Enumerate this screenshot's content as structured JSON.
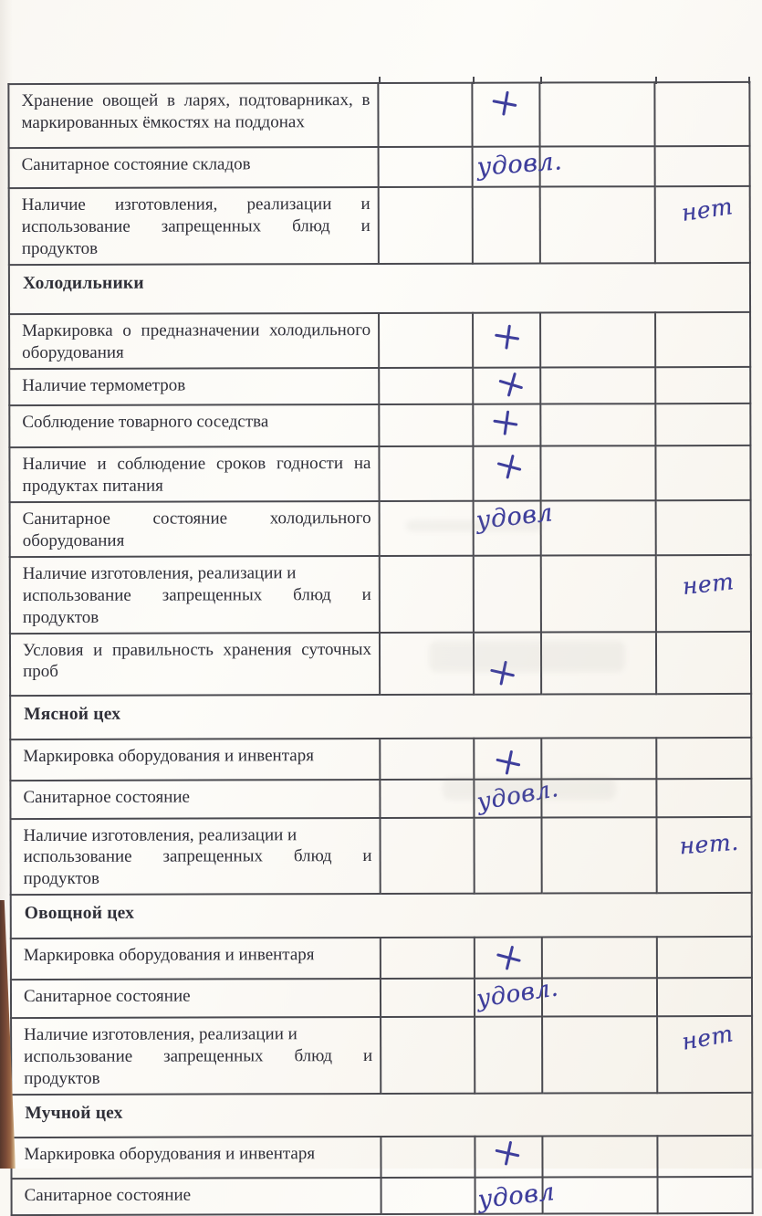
{
  "document_type_label": "Санитарный контрольный лист (скан страницы таблицы)",
  "colors": {
    "ink": "#3e3e9c",
    "grid": "#4a4a50",
    "text": "#2f2f38",
    "paper": "#fbf9f4",
    "desk_wood": "#8a5640"
  },
  "table": {
    "rows": [
      {
        "type": "item",
        "label": "Хранение овощей в ларях, подтоварниках, в маркированных ёмкостях на поддонах",
        "mark": {
          "col": 3,
          "kind": "plus",
          "text": "+",
          "pos": {
            "x": 20,
            "y": 6,
            "tilt": 4
          }
        }
      },
      {
        "type": "item",
        "label": "Санитарное состояние складов",
        "mark": {
          "col": 3,
          "kind": "script",
          "text": "удовл.",
          "pos": {
            "x": 4,
            "y": 5,
            "size": 27,
            "tilt": -4
          }
        }
      },
      {
        "type": "item",
        "label": "Наличие изготовления, реализации и использование запрещенных блюд и продуктов",
        "mark": {
          "col": 5,
          "kind": "script",
          "text": "нет",
          "pos": {
            "x": 28,
            "y": 12,
            "size": 25,
            "tilt": -8
          }
        }
      },
      {
        "type": "section",
        "label": "Холодильники"
      },
      {
        "type": "item",
        "label": "Маркировка о предназначении холодильного оборудования",
        "mark": {
          "col": 3,
          "kind": "plus",
          "text": "+",
          "pos": {
            "x": 22,
            "y": 10,
            "tilt": 2
          }
        }
      },
      {
        "type": "item",
        "label": "Наличие термометров",
        "mark": {
          "col": 3,
          "kind": "plus",
          "text": "+",
          "pos": {
            "x": 26,
            "y": 2,
            "tilt": 10
          }
        }
      },
      {
        "type": "item",
        "label": "Соблюдение товарного соседства",
        "mark": {
          "col": 3,
          "kind": "plus",
          "text": "+",
          "pos": {
            "x": 20,
            "y": 4,
            "tilt": 2
          }
        }
      },
      {
        "type": "item",
        "label": "Наличие и соблюдение сроков годности на продуктах питания",
        "mark": {
          "col": 3,
          "kind": "plus",
          "text": "+",
          "pos": {
            "x": 24,
            "y": 6,
            "tilt": 8
          }
        }
      },
      {
        "type": "item",
        "label": "Санитарное состояние холодильного оборудования",
        "mark": {
          "col": 3,
          "kind": "script",
          "text": "удовл",
          "pos": {
            "x": 2,
            "y": 3,
            "size": 27,
            "tilt": -6
          }
        }
      },
      {
        "type": "item",
        "label": "Наличие изготовления, реализации и\nиспользование запрещенных  блюд и продуктов",
        "mark": {
          "col": 5,
          "kind": "script",
          "text": "нет",
          "pos": {
            "x": 28,
            "y": 18,
            "size": 25,
            "tilt": -6
          }
        }
      },
      {
        "type": "item",
        "label": "Условия и правильность хранения суточных проб",
        "mark": {
          "col": 3,
          "kind": "plus",
          "text": "+",
          "pos": {
            "x": 16,
            "y": 28,
            "tilt": 6
          }
        }
      },
      {
        "type": "section",
        "label": "Мясной цех"
      },
      {
        "type": "item",
        "label": "Маркировка оборудования и инвентаря",
        "mark": {
          "col": 3,
          "kind": "plus",
          "text": "+",
          "pos": {
            "x": 22,
            "y": 10,
            "tilt": 6
          }
        }
      },
      {
        "type": "item",
        "label": "Санитарное состояние",
        "mark": {
          "col": 3,
          "kind": "script",
          "text": "удовл.",
          "pos": {
            "x": 2,
            "y": 4,
            "size": 26,
            "tilt": -10
          }
        }
      },
      {
        "type": "item",
        "label": "Наличие изготовления, реализации и\nиспользование запрещенных блюд и продуктов",
        "mark": {
          "col": 5,
          "kind": "script",
          "text": "нет.",
          "pos": {
            "x": 24,
            "y": 16,
            "size": 25,
            "tilt": -4
          }
        }
      },
      {
        "type": "section",
        "label": "Овощной цех"
      },
      {
        "type": "item",
        "label": "Маркировка оборудования и инвентаря",
        "mark": {
          "col": 3,
          "kind": "plus",
          "text": "+",
          "pos": {
            "x": 22,
            "y": 6,
            "tilt": 8
          }
        }
      },
      {
        "type": "item",
        "label": "Санитарное состояние",
        "mark": {
          "col": 3,
          "kind": "script",
          "text": "удовл.",
          "pos": {
            "x": 1,
            "y": 3,
            "size": 26,
            "tilt": -8
          }
        }
      },
      {
        "type": "item",
        "label": "Наличие изготовления, реализации и\nиспользование запрещенных  блюд и продуктов",
        "mark": {
          "col": 5,
          "kind": "script",
          "text": "нет",
          "pos": {
            "x": 26,
            "y": 10,
            "size": 25,
            "tilt": -10
          }
        }
      },
      {
        "type": "section",
        "label": "Мучной цех"
      },
      {
        "type": "item",
        "label": "Маркировка оборудования и инвентаря",
        "mark": {
          "col": 3,
          "kind": "plus",
          "text": "+",
          "pos": {
            "x": 20,
            "y": 2,
            "tilt": 6
          }
        }
      },
      {
        "type": "item",
        "label": "Санитарное состояние",
        "mark": {
          "col": 3,
          "kind": "script",
          "text": "удовл",
          "pos": {
            "x": 2,
            "y": 6,
            "size": 27,
            "tilt": -6
          }
        }
      }
    ]
  }
}
